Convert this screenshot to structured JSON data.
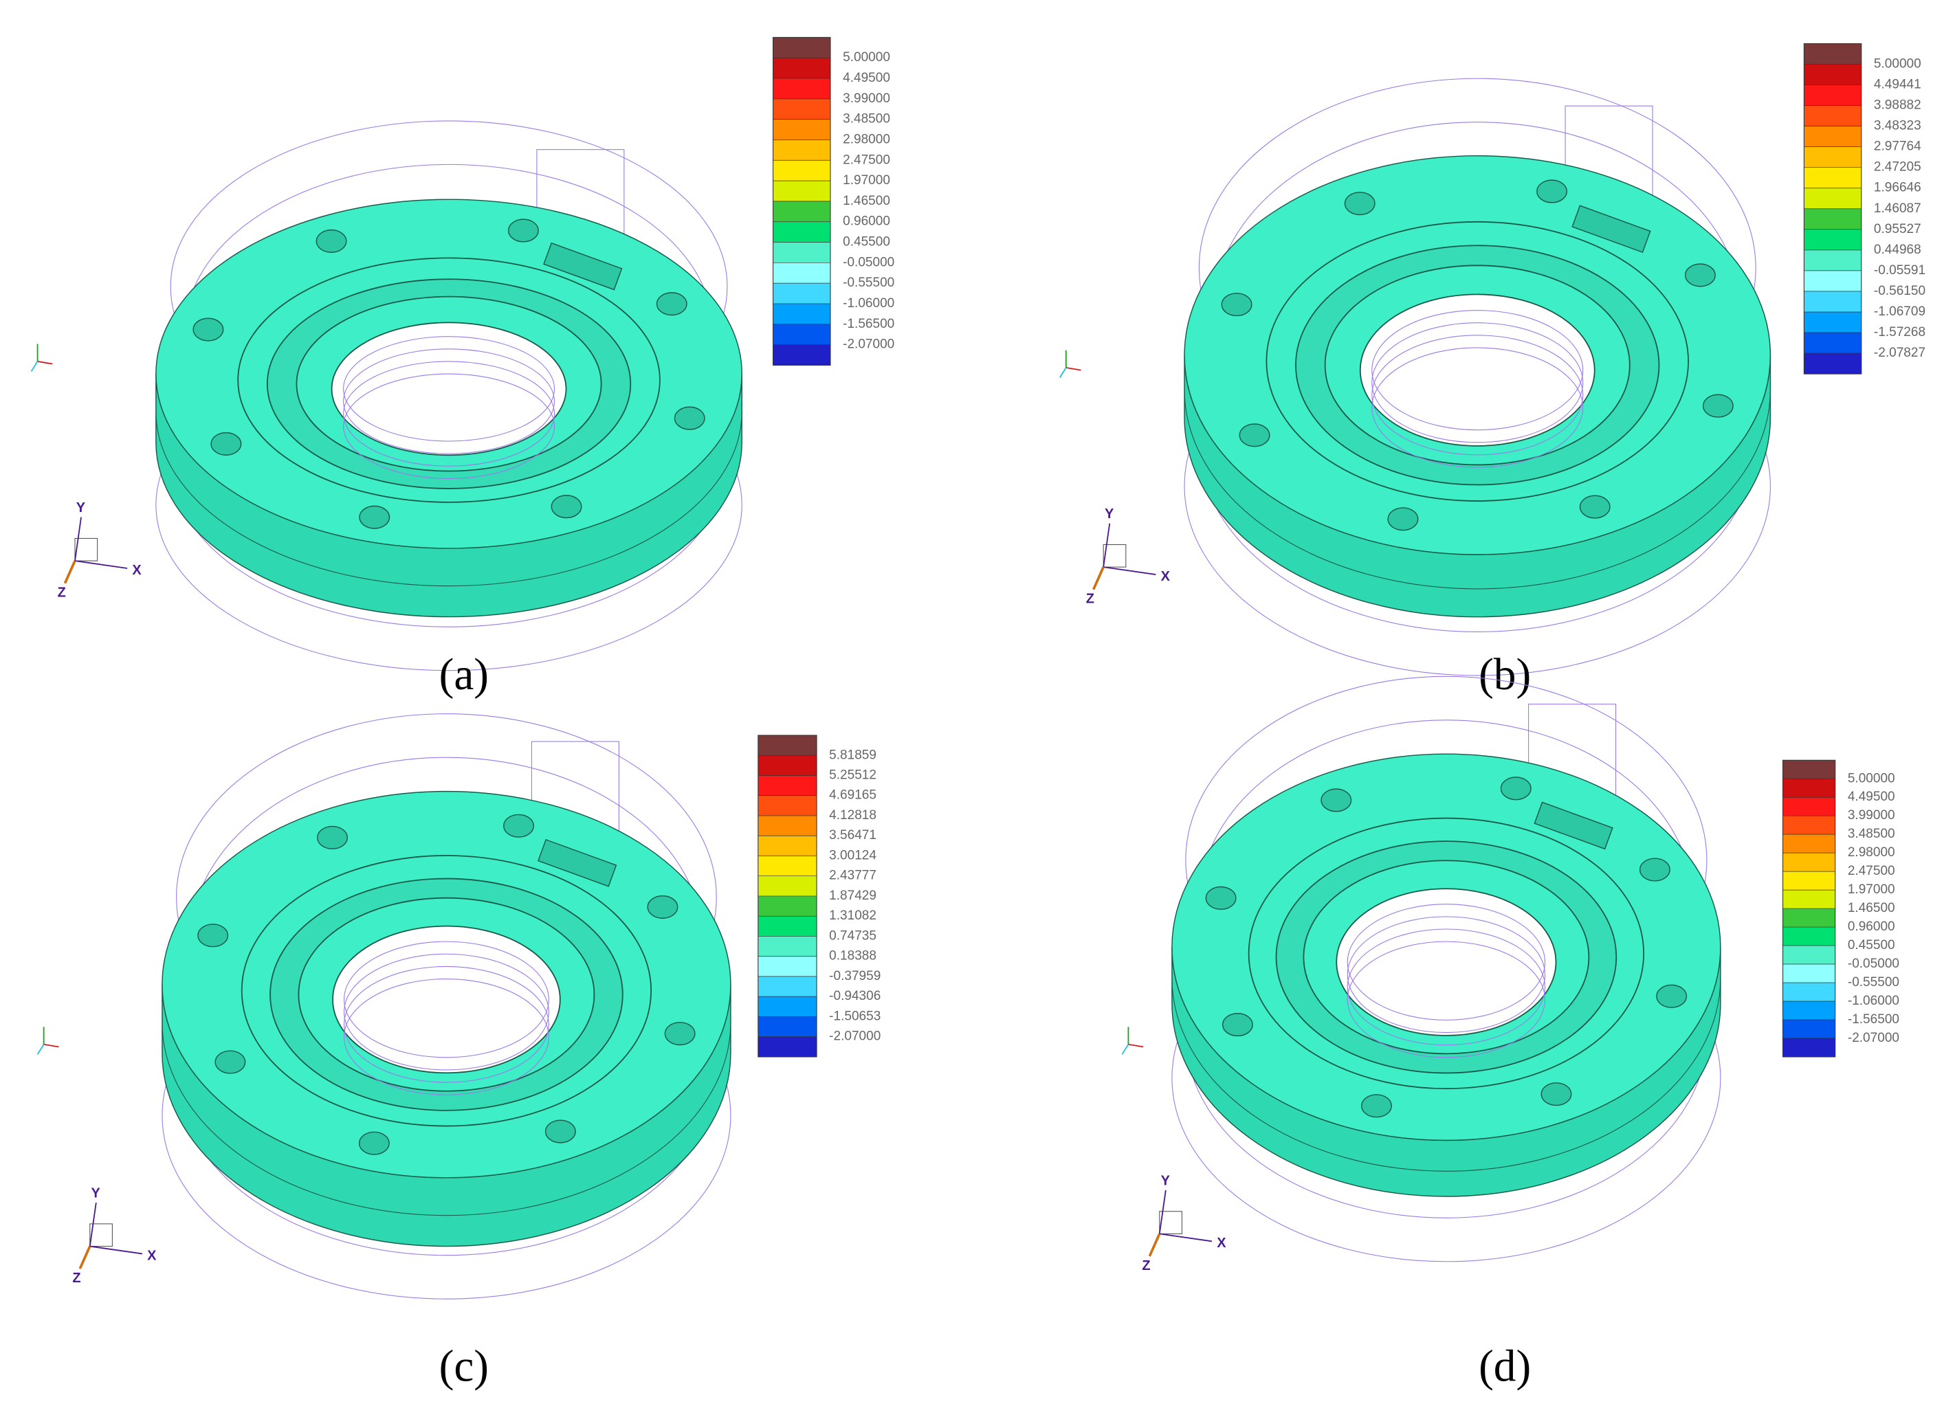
{
  "panels": [
    {
      "caption": "(a)",
      "legend": [
        "5.00000",
        "4.49500",
        "3.99000",
        "3.48500",
        "2.98000",
        "2.47500",
        "1.97000",
        "1.46500",
        "0.96000",
        "0.45500",
        "-0.05000",
        "-0.55500",
        "-1.06000",
        "-1.56500",
        "-2.07000"
      ],
      "axes": {
        "y": "Y",
        "x": "X",
        "z": "Z"
      }
    },
    {
      "caption": "(b)",
      "legend": [
        "5.00000",
        "4.49441",
        "3.98882",
        "3.48323",
        "2.97764",
        "2.47205",
        "1.96646",
        "1.46087",
        "0.95527",
        "0.44968",
        "-0.05591",
        "-0.56150",
        "-1.06709",
        "-1.57268",
        "-2.07827"
      ],
      "axes": {
        "y": "Y",
        "x": "X",
        "z": "Z"
      }
    },
    {
      "caption": "(c)",
      "legend": [
        "5.81859",
        "5.25512",
        "4.69165",
        "4.12818",
        "3.56471",
        "3.00124",
        "2.43777",
        "1.87429",
        "1.31082",
        "0.74735",
        "0.18388",
        "-0.37959",
        "-0.94306",
        "-1.50653",
        "-2.07000"
      ],
      "axes": {
        "y": "Y",
        "x": "X",
        "z": "Z"
      }
    },
    {
      "caption": "(d)",
      "legend": [
        "5.00000",
        "4.49500",
        "3.99000",
        "3.48500",
        "2.98000",
        "2.47500",
        "1.97000",
        "1.46500",
        "0.96000",
        "0.45500",
        "-0.05000",
        "-0.55500",
        "-1.06000",
        "-1.56500",
        "-2.07000"
      ],
      "axes": {
        "y": "Y",
        "x": "X",
        "z": "Z"
      }
    }
  ]
}
